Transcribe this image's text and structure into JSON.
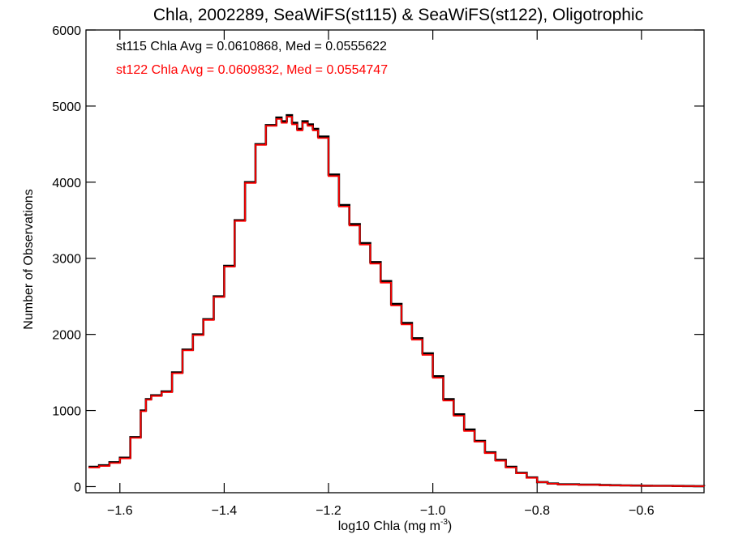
{
  "chart_data": {
    "type": "line",
    "title": "Chla, 2002289, SeaWiFS(st115) & SeaWiFS(st122), Oligotrophic",
    "xlabel": "log10 Chla (mg m",
    "xlabel_sup": "-3",
    "xlabel_end": ")",
    "ylabel": "Number of Observations",
    "xlim": [
      -1.665,
      -0.48
    ],
    "ylim": [
      -80,
      6000
    ],
    "xticks": [
      -1.6,
      -1.4,
      -1.2,
      -1.0,
      -0.8,
      -0.6
    ],
    "xtick_labels": [
      "−1.6",
      "−1.4",
      "−1.2",
      "−1.0",
      "−0.8",
      "−0.6"
    ],
    "yticks": [
      0,
      1000,
      2000,
      3000,
      4000,
      5000,
      6000
    ],
    "ytick_labels": [
      "0",
      "1000",
      "2000",
      "3000",
      "4000",
      "5000",
      "6000"
    ],
    "annotations": [
      {
        "text": "st115 Chla Avg = 0.0610868, Med = 0.0555622",
        "color": "#000000"
      },
      {
        "text": "st122 Chla Avg = 0.0609832, Med = 0.0554747",
        "color": "#ff0000"
      }
    ],
    "series": [
      {
        "color": "#000000",
        "step": true,
        "x": [
          -1.66,
          -1.64,
          -1.62,
          -1.6,
          -1.58,
          -1.56,
          -1.55,
          -1.54,
          -1.52,
          -1.5,
          -1.48,
          -1.46,
          -1.44,
          -1.42,
          -1.4,
          -1.38,
          -1.36,
          -1.34,
          -1.32,
          -1.3,
          -1.29,
          -1.28,
          -1.27,
          -1.26,
          -1.25,
          -1.24,
          -1.23,
          -1.22,
          -1.2,
          -1.18,
          -1.16,
          -1.14,
          -1.12,
          -1.1,
          -1.08,
          -1.06,
          -1.04,
          -1.02,
          -1.0,
          -0.98,
          -0.96,
          -0.94,
          -0.92,
          -0.9,
          -0.88,
          -0.86,
          -0.84,
          -0.82,
          -0.8,
          -0.78,
          -0.76,
          -0.74,
          -0.72,
          -0.7,
          -0.68,
          -0.66,
          -0.64,
          -0.62,
          -0.6,
          -0.58,
          -0.56,
          -0.54,
          -0.52,
          -0.5,
          -0.48
        ],
        "values": [
          260,
          280,
          320,
          380,
          650,
          1000,
          1150,
          1200,
          1250,
          1500,
          1800,
          2000,
          2200,
          2500,
          2900,
          3500,
          4000,
          4500,
          4750,
          4850,
          4800,
          4880,
          4780,
          4700,
          4800,
          4760,
          4700,
          4600,
          4100,
          3700,
          3450,
          3200,
          2950,
          2700,
          2400,
          2150,
          1950,
          1750,
          1450,
          1150,
          950,
          750,
          600,
          450,
          350,
          260,
          180,
          120,
          60,
          40,
          30,
          30,
          25,
          25,
          20,
          18,
          16,
          14,
          12,
          10,
          10,
          8,
          7,
          6,
          5
        ]
      },
      {
        "color": "#ff0000",
        "step": true,
        "x": [
          -1.66,
          -1.64,
          -1.62,
          -1.6,
          -1.58,
          -1.56,
          -1.55,
          -1.54,
          -1.52,
          -1.5,
          -1.48,
          -1.46,
          -1.44,
          -1.42,
          -1.4,
          -1.38,
          -1.36,
          -1.34,
          -1.32,
          -1.3,
          -1.29,
          -1.28,
          -1.27,
          -1.26,
          -1.25,
          -1.24,
          -1.23,
          -1.22,
          -1.2,
          -1.18,
          -1.16,
          -1.14,
          -1.12,
          -1.1,
          -1.08,
          -1.06,
          -1.04,
          -1.02,
          -1.0,
          -0.98,
          -0.96,
          -0.94,
          -0.92,
          -0.9,
          -0.88,
          -0.86,
          -0.84,
          -0.82,
          -0.8,
          -0.78,
          -0.76,
          -0.74,
          -0.72,
          -0.7,
          -0.68,
          -0.66,
          -0.64,
          -0.62,
          -0.6,
          -0.58,
          -0.56,
          -0.54,
          -0.52,
          -0.5,
          -0.48
        ],
        "values": [
          250,
          270,
          310,
          370,
          640,
          990,
          1140,
          1190,
          1240,
          1490,
          1790,
          1990,
          2190,
          2490,
          2890,
          3490,
          3990,
          4490,
          4740,
          4830,
          4780,
          4860,
          4760,
          4680,
          4780,
          4740,
          4680,
          4580,
          4080,
          3680,
          3430,
          3180,
          2930,
          2680,
          2380,
          2130,
          1930,
          1730,
          1430,
          1130,
          930,
          730,
          590,
          440,
          340,
          250,
          175,
          115,
          58,
          38,
          28,
          28,
          23,
          23,
          18,
          16,
          14,
          12,
          10,
          9,
          9,
          7,
          6,
          5,
          4
        ]
      }
    ]
  }
}
